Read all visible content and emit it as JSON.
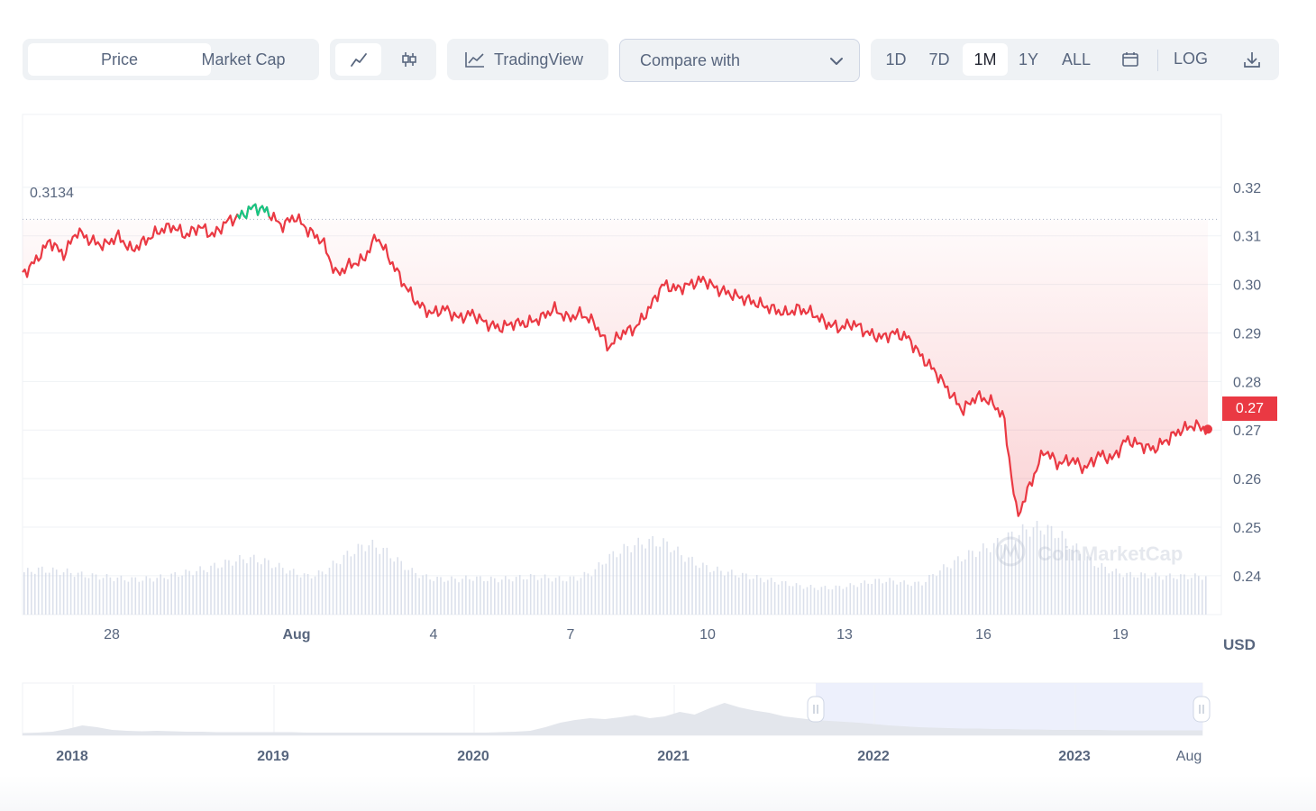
{
  "toolbar": {
    "tabs": [
      "Price",
      "Market Cap"
    ],
    "active_tab": "Price",
    "trading_view_label": "TradingView",
    "compare_label": "Compare with",
    "ranges": [
      "1D",
      "7D",
      "1M",
      "1Y",
      "ALL"
    ],
    "active_range": "1M",
    "log_label": "LOG"
  },
  "chart_data": {
    "type": "line",
    "currency_label": "USD",
    "reference_label": "0.3134",
    "current_price_label": "0.27",
    "watermark": "CoinMarketCap",
    "y_ticks": [
      "0.32",
      "0.31",
      "0.30",
      "0.29",
      "0.28",
      "0.27",
      "0.26",
      "0.25",
      "0.24"
    ],
    "x_ticks": [
      "28",
      "Aug",
      "4",
      "7",
      "10",
      "13",
      "16",
      "19"
    ],
    "ylim": [
      0.232,
      0.335
    ],
    "reference_value": 0.3134,
    "price_series": [
      0.302,
      0.305,
      0.309,
      0.306,
      0.311,
      0.309,
      0.308,
      0.31,
      0.307,
      0.309,
      0.311,
      0.312,
      0.31,
      0.312,
      0.31,
      0.313,
      0.314,
      0.316,
      0.315,
      0.312,
      0.314,
      0.311,
      0.309,
      0.302,
      0.304,
      0.305,
      0.31,
      0.305,
      0.3,
      0.296,
      0.294,
      0.295,
      0.293,
      0.294,
      0.292,
      0.291,
      0.292,
      0.292,
      0.293,
      0.295,
      0.293,
      0.294,
      0.292,
      0.287,
      0.29,
      0.291,
      0.295,
      0.3,
      0.299,
      0.3,
      0.301,
      0.299,
      0.298,
      0.297,
      0.296,
      0.295,
      0.294,
      0.295,
      0.294,
      0.292,
      0.291,
      0.292,
      0.29,
      0.289,
      0.29,
      0.289,
      0.285,
      0.282,
      0.278,
      0.274,
      0.277,
      0.276,
      0.273,
      0.252,
      0.259,
      0.266,
      0.263,
      0.264,
      0.262,
      0.265,
      0.264,
      0.268,
      0.267,
      0.266,
      0.268,
      0.27,
      0.271,
      0.27
    ],
    "volume_series": [
      0.3,
      0.32,
      0.31,
      0.3,
      0.28,
      0.27,
      0.26,
      0.25,
      0.25,
      0.26,
      0.28,
      0.3,
      0.32,
      0.35,
      0.38,
      0.4,
      0.38,
      0.34,
      0.3,
      0.27,
      0.3,
      0.38,
      0.45,
      0.5,
      0.46,
      0.38,
      0.3,
      0.26,
      0.25,
      0.25,
      0.26,
      0.25,
      0.25,
      0.26,
      0.27,
      0.26,
      0.25,
      0.26,
      0.3,
      0.4,
      0.46,
      0.5,
      0.52,
      0.5,
      0.42,
      0.36,
      0.32,
      0.3,
      0.28,
      0.26,
      0.24,
      0.22,
      0.2,
      0.19,
      0.19,
      0.2,
      0.22,
      0.24,
      0.24,
      0.22,
      0.22,
      0.3,
      0.36,
      0.42,
      0.46,
      0.5,
      0.56,
      0.6,
      0.62,
      0.58,
      0.5,
      0.4,
      0.34,
      0.3,
      0.28,
      0.28,
      0.27,
      0.27,
      0.27,
      0.27
    ],
    "navigator_x_ticks": [
      "2018",
      "2019",
      "2020",
      "2021",
      "2022",
      "2023",
      "Aug"
    ],
    "navigator_series": [
      0.05,
      0.06,
      0.08,
      0.14,
      0.22,
      0.18,
      0.12,
      0.1,
      0.09,
      0.1,
      0.09,
      0.08,
      0.08,
      0.07,
      0.07,
      0.07,
      0.07,
      0.07,
      0.07,
      0.06,
      0.06,
      0.06,
      0.06,
      0.06,
      0.06,
      0.06,
      0.06,
      0.06,
      0.06,
      0.06,
      0.06,
      0.06,
      0.07,
      0.08,
      0.1,
      0.18,
      0.28,
      0.34,
      0.38,
      0.36,
      0.4,
      0.45,
      0.38,
      0.42,
      0.52,
      0.46,
      0.6,
      0.72,
      0.62,
      0.55,
      0.5,
      0.42,
      0.38,
      0.34,
      0.32,
      0.3,
      0.28,
      0.25,
      0.22,
      0.2,
      0.18,
      0.17,
      0.16,
      0.15,
      0.15,
      0.14,
      0.14,
      0.13,
      0.13,
      0.12,
      0.12,
      0.12,
      0.12,
      0.11,
      0.11,
      0.11,
      0.11,
      0.11,
      0.11,
      0.11
    ],
    "colors": {
      "down": "#ea3943",
      "up": "#16c784",
      "fill": "#fce4e6",
      "grid": "#eff2f5",
      "navigator_selection": "#e8ecfb"
    }
  }
}
